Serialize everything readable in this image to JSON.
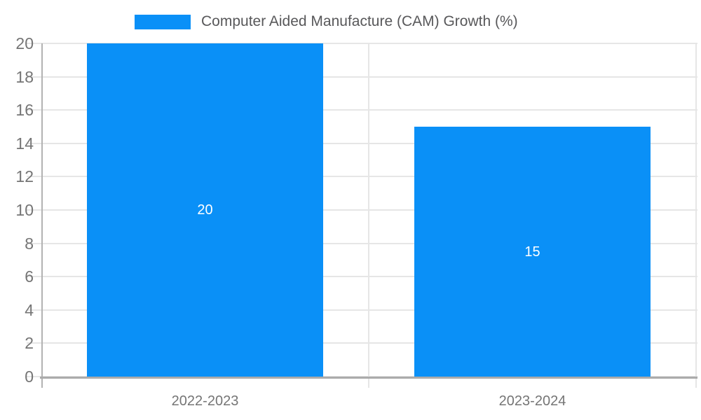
{
  "legend": {
    "label": "Computer Aided Manufacture (CAM) Growth (%)"
  },
  "chart_data": {
    "type": "bar",
    "title": "",
    "categories": [
      "2022-2023",
      "2023-2024"
    ],
    "series": [
      {
        "name": "Computer Aided Manufacture (CAM) Growth (%)",
        "values": [
          20,
          15
        ]
      }
    ],
    "data_labels": [
      "20",
      "15"
    ],
    "xlabel": "",
    "ylabel": "",
    "ylim": [
      0,
      20
    ],
    "yticks": [
      0,
      2,
      4,
      6,
      8,
      10,
      12,
      14,
      16,
      18,
      20
    ],
    "grid": true,
    "legend_position": "top",
    "colors": {
      "bar": "#0a90f7",
      "data_label": "#ffffff",
      "gridline": "#e6e6e6",
      "axis_line": "#ababab",
      "y_axis_line": "#b2b2b2",
      "tick_label": "#757575",
      "legend_text": "#58585a",
      "background": "#ffffff"
    }
  }
}
